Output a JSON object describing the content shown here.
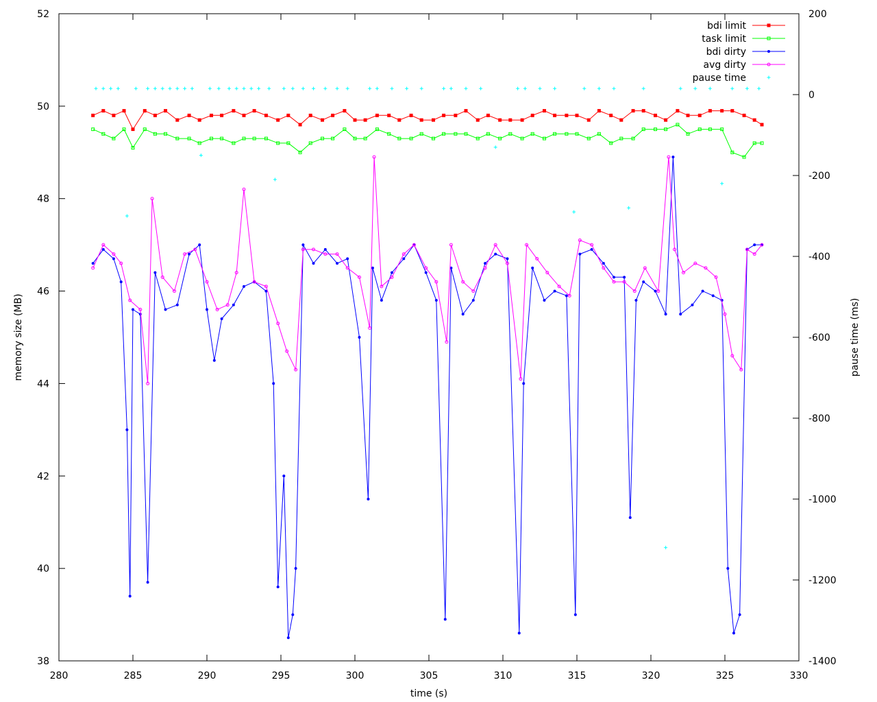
{
  "chart_data": {
    "type": "line",
    "title": "",
    "xlabel": "time (s)",
    "ylabel": "memory size (MB)",
    "y2label": "pause time (ms)",
    "xlim": [
      280,
      330
    ],
    "ylim": [
      38,
      52
    ],
    "y2lim": [
      -1400,
      200
    ],
    "xticks": [
      "280",
      "285",
      "290",
      "295",
      "300",
      "305",
      "310",
      "315",
      "320",
      "325",
      "330"
    ],
    "yticks": [
      "38",
      "40",
      "42",
      "44",
      "46",
      "48",
      "50",
      "52"
    ],
    "y2ticks": [
      "-1400",
      "-1200",
      "-1000",
      "-800",
      "-600",
      "-400",
      "-200",
      "0",
      "200"
    ],
    "grid": false,
    "legend_position": "top-right",
    "colors": {
      "bdi_limit": "#ff0000",
      "task_limit": "#00ff00",
      "bdi_dirty": "#0000ff",
      "avg_dirty": "#ff00ff",
      "pause_time": "#00ffff"
    },
    "series": [
      {
        "name": "bdi limit",
        "axis": "y",
        "marker": "square-filled",
        "x": [
          282.3,
          283.0,
          283.7,
          284.4,
          285.0,
          285.8,
          286.5,
          287.2,
          288.0,
          288.8,
          289.5,
          290.3,
          291.0,
          291.8,
          292.5,
          293.2,
          294.0,
          294.8,
          295.5,
          296.3,
          297.0,
          297.8,
          298.5,
          299.3,
          300.0,
          300.7,
          301.5,
          302.3,
          303.0,
          303.8,
          304.5,
          305.3,
          306.0,
          306.8,
          307.5,
          308.3,
          309.0,
          309.8,
          310.5,
          311.3,
          312.0,
          312.8,
          313.5,
          314.3,
          315.0,
          315.8,
          316.5,
          317.3,
          318.0,
          318.8,
          319.5,
          320.3,
          321.0,
          321.8,
          322.5,
          323.3,
          324.0,
          324.8,
          325.5,
          326.3,
          327.0,
          327.5
        ],
        "y": [
          49.8,
          49.9,
          49.8,
          49.9,
          49.5,
          49.9,
          49.8,
          49.9,
          49.7,
          49.8,
          49.7,
          49.8,
          49.8,
          49.9,
          49.8,
          49.9,
          49.8,
          49.7,
          49.8,
          49.6,
          49.8,
          49.7,
          49.8,
          49.9,
          49.7,
          49.7,
          49.8,
          49.8,
          49.7,
          49.8,
          49.7,
          49.7,
          49.8,
          49.8,
          49.9,
          49.7,
          49.8,
          49.7,
          49.7,
          49.7,
          49.8,
          49.9,
          49.8,
          49.8,
          49.8,
          49.7,
          49.9,
          49.8,
          49.7,
          49.9,
          49.9,
          49.8,
          49.7,
          49.9,
          49.8,
          49.8,
          49.9,
          49.9,
          49.9,
          49.8,
          49.7,
          49.6
        ]
      },
      {
        "name": "task limit",
        "axis": "y",
        "marker": "square-open",
        "x": [
          282.3,
          283.0,
          283.7,
          284.4,
          285.0,
          285.8,
          286.5,
          287.2,
          288.0,
          288.8,
          289.5,
          290.3,
          291.0,
          291.8,
          292.5,
          293.2,
          294.0,
          294.8,
          295.5,
          296.3,
          297.0,
          297.8,
          298.5,
          299.3,
          300.0,
          300.7,
          301.5,
          302.3,
          303.0,
          303.8,
          304.5,
          305.3,
          306.0,
          306.8,
          307.5,
          308.3,
          309.0,
          309.8,
          310.5,
          311.3,
          312.0,
          312.8,
          313.5,
          314.3,
          315.0,
          315.8,
          316.5,
          317.3,
          318.0,
          318.8,
          319.5,
          320.3,
          321.0,
          321.8,
          322.5,
          323.3,
          324.0,
          324.8,
          325.5,
          326.3,
          327.0,
          327.5
        ],
        "y": [
          49.5,
          49.4,
          49.3,
          49.5,
          49.1,
          49.5,
          49.4,
          49.4,
          49.3,
          49.3,
          49.2,
          49.3,
          49.3,
          49.2,
          49.3,
          49.3,
          49.3,
          49.2,
          49.2,
          49.0,
          49.2,
          49.3,
          49.3,
          49.5,
          49.3,
          49.3,
          49.5,
          49.4,
          49.3,
          49.3,
          49.4,
          49.3,
          49.4,
          49.4,
          49.4,
          49.3,
          49.4,
          49.3,
          49.4,
          49.3,
          49.4,
          49.3,
          49.4,
          49.4,
          49.4,
          49.3,
          49.4,
          49.2,
          49.3,
          49.3,
          49.5,
          49.5,
          49.5,
          49.6,
          49.4,
          49.5,
          49.5,
          49.5,
          49.0,
          48.9,
          49.2,
          49.2
        ]
      },
      {
        "name": "bdi dirty",
        "axis": "y",
        "marker": "circle-filled",
        "x": [
          282.3,
          283.0,
          283.7,
          284.2,
          284.6,
          284.8,
          285.0,
          285.5,
          286.0,
          286.5,
          287.2,
          288.0,
          288.8,
          289.5,
          290.0,
          290.5,
          291.0,
          291.8,
          292.5,
          293.2,
          294.0,
          294.5,
          294.8,
          295.2,
          295.5,
          295.8,
          296.0,
          296.5,
          297.2,
          298.0,
          298.8,
          299.5,
          300.3,
          300.9,
          301.2,
          301.8,
          302.5,
          303.3,
          304.0,
          304.8,
          305.5,
          306.1,
          306.5,
          307.3,
          308.0,
          308.8,
          309.5,
          310.3,
          311.1,
          311.4,
          312.0,
          312.8,
          313.5,
          314.3,
          314.9,
          315.2,
          316.0,
          316.8,
          317.5,
          318.2,
          318.6,
          319.0,
          319.5,
          320.3,
          321.0,
          321.5,
          322.0,
          322.8,
          323.5,
          324.2,
          324.8,
          325.2,
          325.6,
          326.0,
          326.5,
          327.0,
          327.5
        ],
        "y": [
          46.6,
          46.9,
          46.7,
          46.2,
          43.0,
          39.4,
          45.6,
          45.5,
          39.7,
          46.4,
          45.6,
          45.7,
          46.8,
          47.0,
          45.6,
          44.5,
          45.4,
          45.7,
          46.1,
          46.2,
          46.0,
          44.0,
          39.6,
          42.0,
          38.5,
          39.0,
          40.0,
          47.0,
          46.6,
          46.9,
          46.6,
          46.7,
          45.0,
          41.5,
          46.5,
          45.8,
          46.4,
          46.7,
          47.0,
          46.4,
          45.8,
          38.9,
          46.5,
          45.5,
          45.8,
          46.6,
          46.8,
          46.7,
          38.6,
          44.0,
          46.5,
          45.8,
          46.0,
          45.9,
          39.0,
          46.8,
          46.9,
          46.6,
          46.3,
          46.3,
          41.1,
          45.8,
          46.2,
          46.0,
          45.5,
          48.9,
          45.5,
          45.7,
          46.0,
          45.9,
          45.8,
          40.0,
          38.6,
          39.0,
          46.9,
          47.0,
          47.0
        ]
      },
      {
        "name": "avg dirty",
        "axis": "y",
        "marker": "circle-open",
        "x": [
          282.3,
          283.0,
          283.7,
          284.2,
          284.8,
          285.5,
          286.0,
          286.3,
          287.0,
          287.8,
          288.5,
          289.2,
          290.0,
          290.7,
          291.4,
          292.0,
          292.5,
          293.2,
          294.0,
          294.8,
          295.4,
          296.0,
          296.5,
          297.2,
          298.0,
          298.8,
          299.5,
          300.3,
          301.0,
          301.3,
          301.8,
          302.5,
          303.3,
          304.0,
          304.8,
          305.5,
          306.2,
          306.5,
          307.3,
          308.0,
          308.8,
          309.5,
          310.3,
          311.2,
          311.6,
          312.3,
          313.0,
          313.8,
          314.5,
          315.2,
          316.0,
          316.8,
          317.5,
          318.2,
          318.9,
          319.6,
          320.5,
          321.2,
          321.6,
          322.2,
          323.0,
          323.7,
          324.4,
          325.0,
          325.5,
          326.1,
          326.5,
          327.0,
          327.5
        ],
        "y": [
          46.5,
          47.0,
          46.8,
          46.6,
          45.8,
          45.6,
          44.0,
          48.0,
          46.3,
          46.0,
          46.8,
          46.9,
          46.2,
          45.6,
          45.7,
          46.4,
          48.2,
          46.2,
          46.1,
          45.3,
          44.7,
          44.3,
          46.9,
          46.9,
          46.8,
          46.8,
          46.5,
          46.3,
          45.2,
          48.9,
          46.1,
          46.3,
          46.8,
          47.0,
          46.5,
          46.2,
          44.9,
          47.0,
          46.2,
          46.0,
          46.5,
          47.0,
          46.6,
          44.1,
          47.0,
          46.7,
          46.4,
          46.1,
          45.9,
          47.1,
          47.0,
          46.5,
          46.2,
          46.2,
          46.0,
          46.5,
          46.0,
          48.9,
          46.9,
          46.4,
          46.6,
          46.5,
          46.3,
          45.5,
          44.6,
          44.3,
          46.9,
          46.8,
          47.0
        ]
      },
      {
        "name": "pause time",
        "axis": "y2",
        "marker": "plus",
        "x": [
          282.5,
          283.0,
          283.5,
          284.0,
          284.6,
          285.2,
          286.0,
          286.5,
          287.0,
          287.5,
          288.0,
          288.5,
          289.0,
          289.6,
          290.2,
          290.8,
          291.5,
          292.0,
          292.5,
          293.0,
          293.5,
          294.2,
          294.6,
          295.2,
          295.8,
          296.5,
          297.2,
          298.0,
          298.8,
          299.5,
          301.0,
          301.5,
          302.5,
          303.5,
          304.5,
          306.0,
          306.5,
          307.5,
          308.5,
          309.5,
          311.0,
          311.5,
          312.5,
          313.5,
          314.8,
          315.5,
          316.5,
          317.5,
          318.5,
          319.5,
          321.0,
          322.0,
          323.0,
          324.0,
          324.8,
          325.5,
          326.5,
          327.3
        ],
        "y": [
          15,
          15,
          15,
          15,
          -300,
          15,
          15,
          15,
          15,
          15,
          15,
          15,
          15,
          -150,
          15,
          15,
          15,
          15,
          15,
          15,
          15,
          15,
          -210,
          15,
          15,
          15,
          15,
          15,
          15,
          15,
          15,
          15,
          15,
          15,
          15,
          15,
          15,
          15,
          15,
          -130,
          15,
          15,
          15,
          15,
          -290,
          15,
          15,
          15,
          -280,
          15,
          -1120,
          15,
          15,
          15,
          -220,
          15,
          15,
          15
        ]
      }
    ]
  }
}
